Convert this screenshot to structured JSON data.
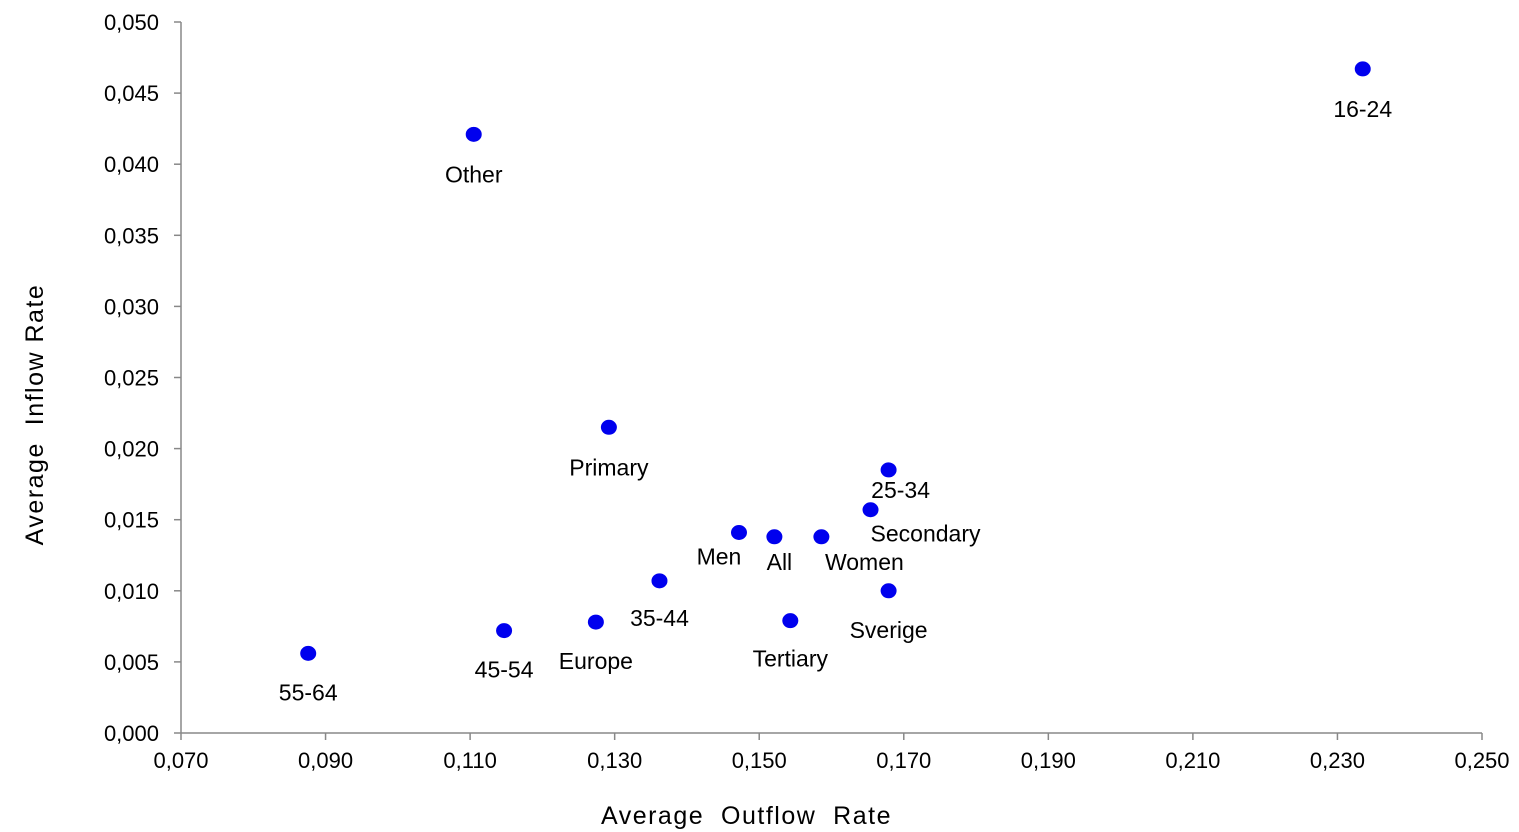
{
  "chart_data": {
    "type": "scatter",
    "xlabel": "Average  Outflow  Rate",
    "ylabel": "Average  Inflow Rate",
    "xlim": [
      0.07,
      0.25
    ],
    "ylim": [
      0.0,
      0.05
    ],
    "x_ticks": [
      0.07,
      0.09,
      0.11,
      0.13,
      0.15,
      0.17,
      0.19,
      0.21,
      0.23,
      0.25
    ],
    "y_ticks": [
      0.0,
      0.005,
      0.01,
      0.015,
      0.02,
      0.025,
      0.03,
      0.035,
      0.04,
      0.045,
      0.05
    ],
    "x_tick_labels": [
      "0,070",
      "0,090",
      "0,110",
      "0,130",
      "0,150",
      "0,170",
      "0,190",
      "0,210",
      "0,230",
      "0,250"
    ],
    "y_tick_labels": [
      "0,000",
      "0,005",
      "0,010",
      "0,015",
      "0,020",
      "0,025",
      "0,030",
      "0,035",
      "0,040",
      "0,045",
      "0,050"
    ],
    "grid": false,
    "marker_color": "#0000ee",
    "points": [
      {
        "label": "16-24",
        "x": 0.2335,
        "y": 0.0467
      },
      {
        "label": "Other",
        "x": 0.1105,
        "y": 0.0421
      },
      {
        "label": "Primary",
        "x": 0.1292,
        "y": 0.0215
      },
      {
        "label": "25-34",
        "x": 0.1679,
        "y": 0.0185
      },
      {
        "label": "Secondary",
        "x": 0.1654,
        "y": 0.0157
      },
      {
        "label": "Men",
        "x": 0.1472,
        "y": 0.0141
      },
      {
        "label": "All",
        "x": 0.1521,
        "y": 0.0138
      },
      {
        "label": "Women",
        "x": 0.1586,
        "y": 0.0138
      },
      {
        "label": "35-44",
        "x": 0.1362,
        "y": 0.0107
      },
      {
        "label": "Sverige",
        "x": 0.1679,
        "y": 0.01
      },
      {
        "label": "Tertiary",
        "x": 0.1543,
        "y": 0.0079
      },
      {
        "label": "Europe",
        "x": 0.1274,
        "y": 0.0078
      },
      {
        "label": "45-54",
        "x": 0.1147,
        "y": 0.0072
      },
      {
        "label": "55-64",
        "x": 0.0876,
        "y": 0.0056
      }
    ]
  }
}
